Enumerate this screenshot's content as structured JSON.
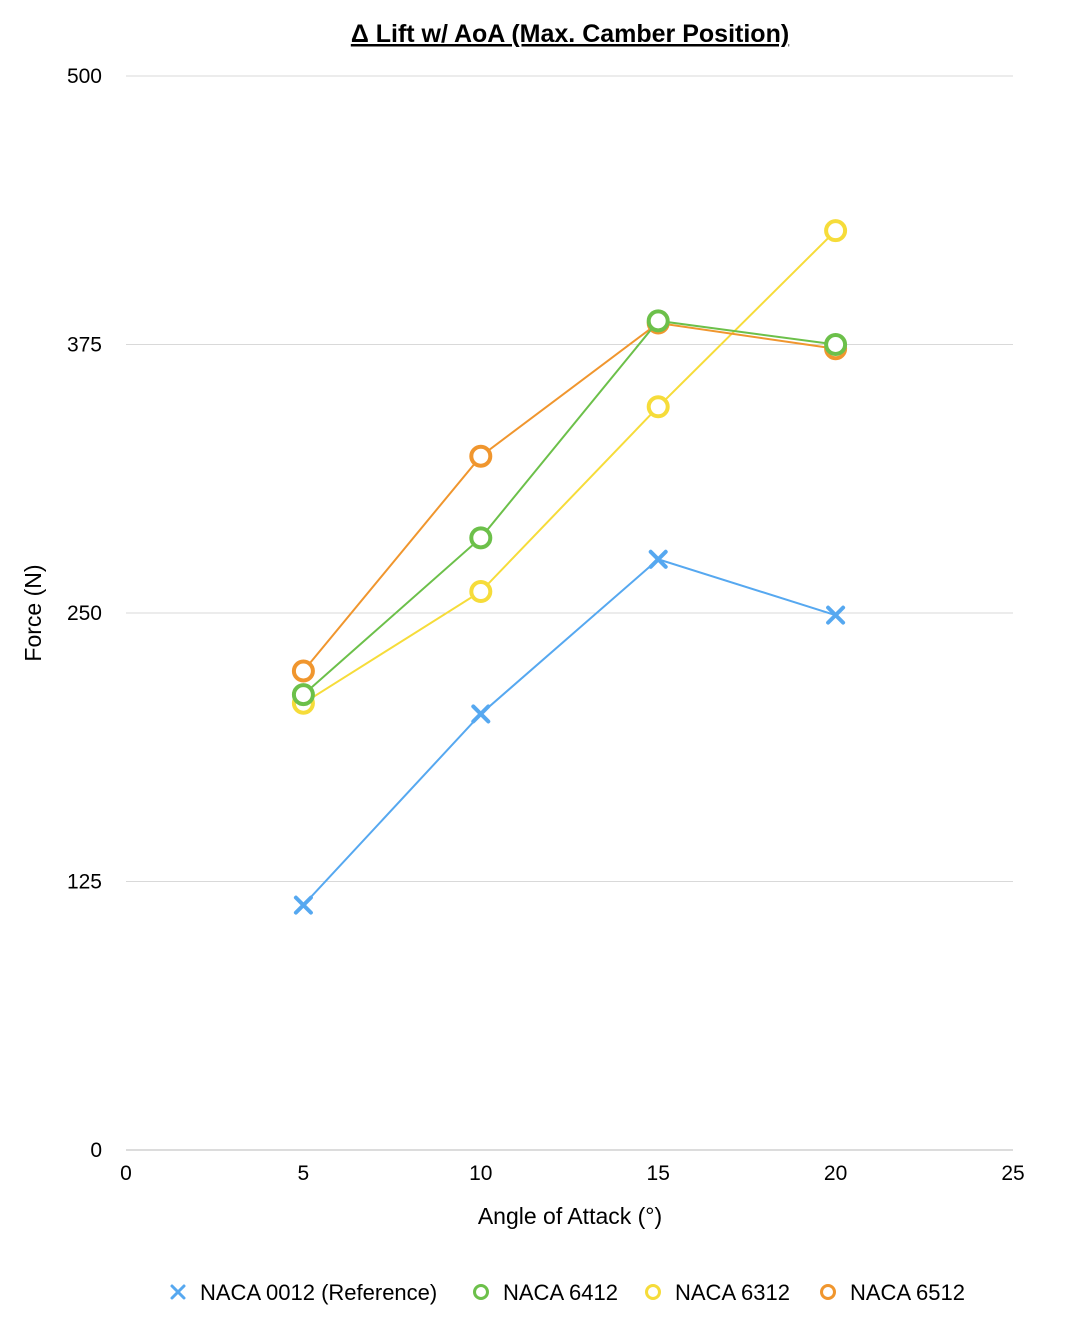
{
  "chart_data": {
    "type": "line",
    "title": "Δ Lift w/ AoA (Max. Camber Position)",
    "xlabel": "Angle of Attack (°)",
    "ylabel": "Force (N)",
    "xlim": [
      0,
      25
    ],
    "ylim": [
      0,
      500
    ],
    "x_ticks": [
      "0",
      "5",
      "10",
      "15",
      "20",
      "25"
    ],
    "y_ticks": [
      "0",
      "125",
      "250",
      "375",
      "500"
    ],
    "grid": "horizontal",
    "legend_position": "bottom",
    "x": [
      5,
      10,
      15,
      20
    ],
    "series": [
      {
        "name": "NACA 0012 (Reference)",
        "marker": "x",
        "color": "#56A8F0",
        "values": [
          114,
          203,
          275,
          249
        ]
      },
      {
        "name": "NACA 6412",
        "marker": "circle",
        "color": "#6CC04A",
        "values": [
          212,
          285,
          386,
          375
        ]
      },
      {
        "name": "NACA 6312",
        "marker": "circle",
        "color": "#F6DC3A",
        "values": [
          208,
          260,
          346,
          428
        ]
      },
      {
        "name": "NACA 6512",
        "marker": "circle",
        "color": "#F0962E",
        "values": [
          223,
          323,
          385,
          373
        ]
      }
    ]
  }
}
